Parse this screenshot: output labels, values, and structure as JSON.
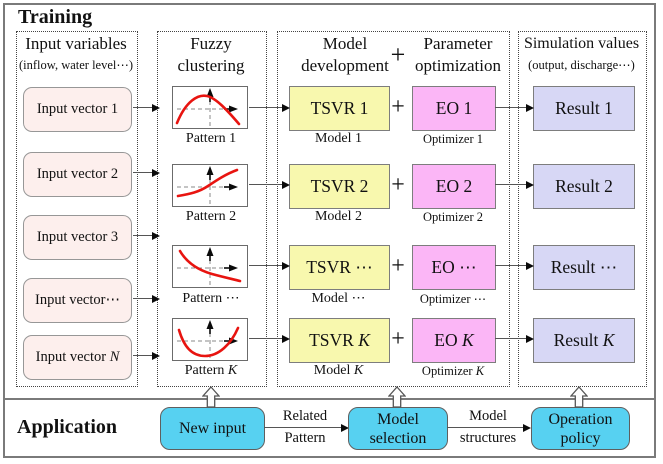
{
  "training": {
    "label": "Training",
    "col_input": {
      "title": "Input variables",
      "subtitle": "(inflow, water level⋯)",
      "vectors": [
        {
          "text": "Input vector 1",
          "it": ""
        },
        {
          "text": "Input vector 2",
          "it": ""
        },
        {
          "text": "Input vector 3",
          "it": ""
        },
        {
          "text": "Input vector⋯",
          "it": ""
        },
        {
          "text": "Input vector ",
          "it": "N"
        }
      ]
    },
    "col_fuzzy": {
      "title_line1": "Fuzzy",
      "title_line2": "clustering",
      "patterns": [
        {
          "shape": "bell",
          "label": {
            "text": "Pattern 1",
            "it": ""
          }
        },
        {
          "shape": "rising",
          "label": {
            "text": "Pattern 2",
            "it": ""
          }
        },
        {
          "shape": "falling",
          "label": {
            "text": "Pattern ⋯",
            "it": ""
          }
        },
        {
          "shape": "u",
          "label": {
            "text": "Pattern ",
            "it": "K"
          }
        }
      ]
    },
    "col_model": {
      "title_model_1": "Model",
      "title_model_2": "development",
      "plus_sign": "+",
      "title_param_1": "Parameter",
      "title_param_2": "optimization",
      "rows": [
        {
          "tsvr": {
            "text": "TSVR 1",
            "it": ""
          },
          "plus": "+",
          "eo": {
            "text": "EO 1",
            "it": ""
          },
          "model": {
            "text": "Model 1",
            "it": ""
          },
          "optimizer": {
            "text": "Optimizer 1",
            "it": ""
          }
        },
        {
          "tsvr": {
            "text": "TSVR 2",
            "it": ""
          },
          "plus": "+",
          "eo": {
            "text": "EO 2",
            "it": ""
          },
          "model": {
            "text": "Model 2",
            "it": ""
          },
          "optimizer": {
            "text": "Optimizer 2",
            "it": ""
          }
        },
        {
          "tsvr": {
            "text": "TSVR ⋯",
            "it": ""
          },
          "plus": "+",
          "eo": {
            "text": "EO ⋯",
            "it": ""
          },
          "model": {
            "text": "Model ⋯",
            "it": ""
          },
          "optimizer": {
            "text": "Optimizer ⋯",
            "it": ""
          }
        },
        {
          "tsvr": {
            "text": "TSVR ",
            "it": "K"
          },
          "plus": "+",
          "eo": {
            "text": "EO ",
            "it": "K"
          },
          "model": {
            "text": "Model ",
            "it": "K"
          },
          "optimizer": {
            "text": "Optimizer ",
            "it": "K"
          }
        }
      ]
    },
    "col_sim": {
      "title": "Simulation values",
      "subtitle": "(output, discharge⋯)",
      "results": [
        {
          "text": "Result 1",
          "it": ""
        },
        {
          "text": "Result 2",
          "it": ""
        },
        {
          "text": "Result ⋯",
          "it": ""
        },
        {
          "text": "Result ",
          "it": "K"
        }
      ]
    }
  },
  "application": {
    "label": "Application",
    "new_input": "New input",
    "arrow1_top": "Related",
    "arrow1_bottom": "Pattern",
    "model_selection_1": "Model",
    "model_selection_2": "selection",
    "arrow2_top": "Model",
    "arrow2_bottom": "structures",
    "operation_policy_1": "Operation",
    "operation_policy_2": "policy"
  },
  "colors": {
    "input_box": "#fdefed",
    "tsvr_box": "#f8f8ae",
    "eo_box": "#fbb6f6",
    "result_box": "#d7d7f5",
    "app_box": "#57d1f1",
    "curve_red": "#e81410"
  }
}
